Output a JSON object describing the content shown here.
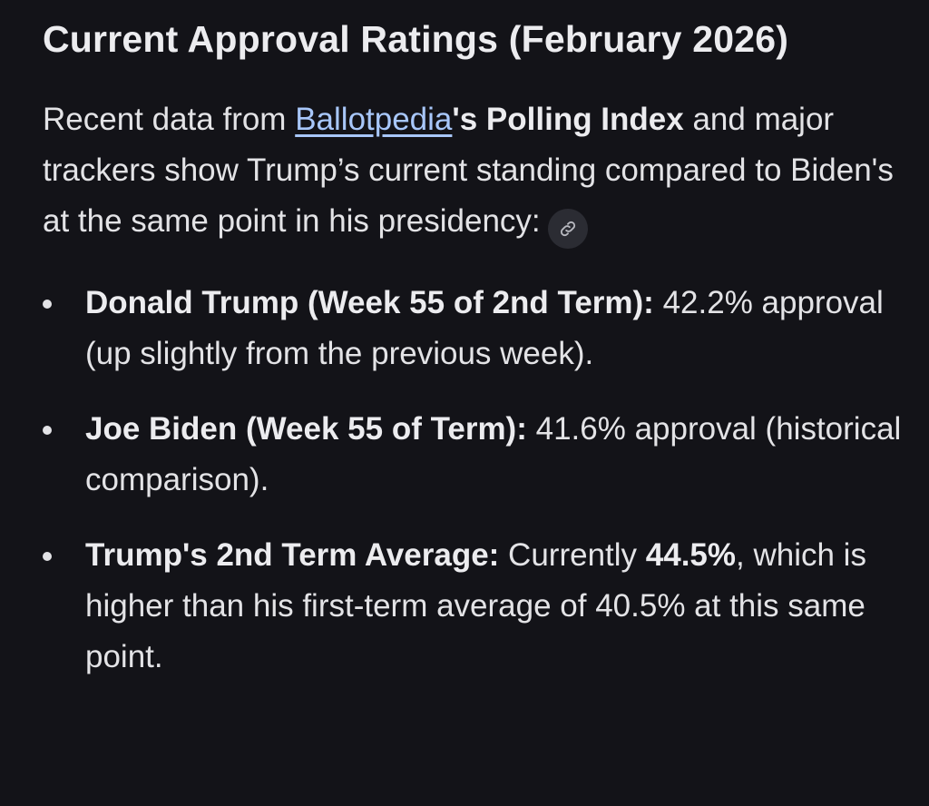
{
  "heading": "Current Approval Ratings (February 2026)",
  "intro": {
    "prefix": "Recent data from ",
    "link_text": "Ballotpedia",
    "bold_text": "'s Polling Index",
    "suffix": " and major trackers show Trump’s current standing compared to Biden's at the same point in his presidency:",
    "citation_icon": "link-icon"
  },
  "bullets": [
    {
      "label": "Donald Trump (Week 55 of 2nd Term):",
      "text": " 42.2% approval (up slightly from the previous week)."
    },
    {
      "label": "Joe Biden (Week 55 of Term):",
      "text": " 41.6% approval (historical comparison)."
    },
    {
      "label": "Trump's 2nd Term Average:",
      "text_before": " Currently ",
      "emphasis": "44.5%",
      "text_after": ", which is higher than his first-term average of 40.5% at this same point."
    }
  ],
  "colors": {
    "background": "#131318",
    "text": "#e3e3e6",
    "link": "#a8c7fa",
    "chip": "#2b2c33"
  }
}
